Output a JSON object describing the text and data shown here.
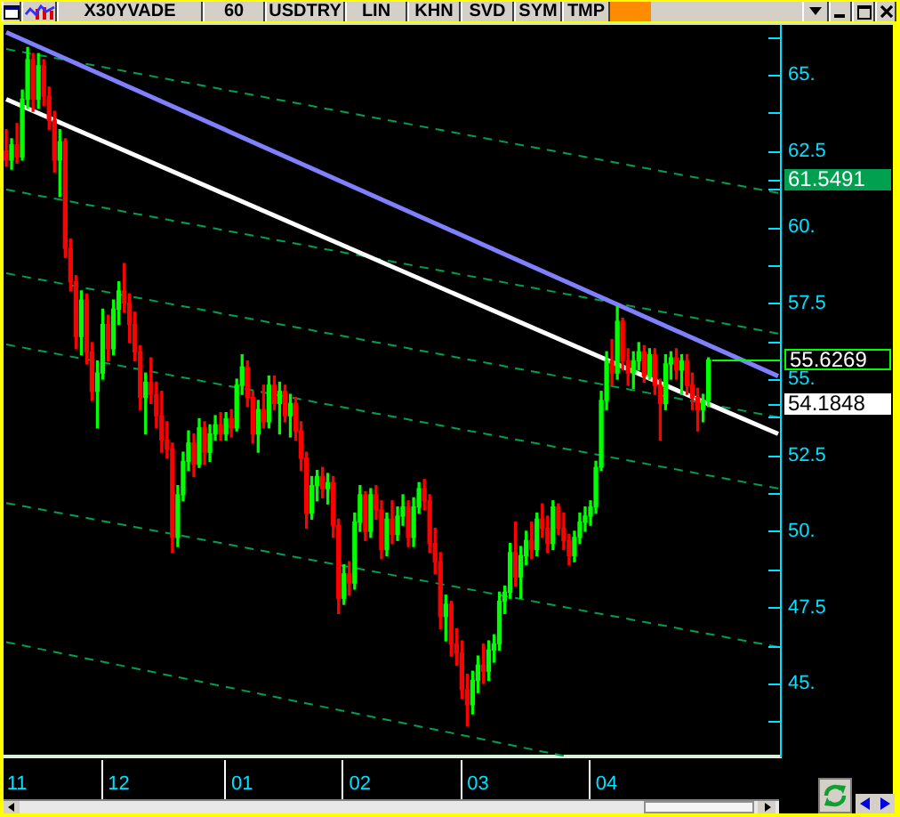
{
  "chart_data": {
    "type": "candlestick",
    "title": "X30YVADE",
    "annotations": [
      "60",
      "USDTRY",
      "LIN",
      "KHN",
      "SVD",
      "SYM",
      "TMP"
    ],
    "categories": [
      null,
      null,
      "11",
      null,
      null,
      null,
      null,
      null,
      null,
      null,
      null,
      null,
      null,
      null,
      null,
      null,
      null,
      null,
      null,
      null,
      null,
      "12",
      null,
      null,
      null,
      null,
      null,
      null,
      null,
      null,
      null,
      null,
      null,
      null,
      null,
      null,
      null,
      null,
      null,
      null,
      null,
      null,
      null,
      null,
      "01",
      null,
      null,
      null,
      null,
      null,
      null,
      null,
      null,
      null,
      null,
      null,
      null,
      null,
      null,
      null,
      null,
      null,
      null,
      null,
      null,
      null,
      "02",
      null,
      null,
      null,
      null,
      null,
      null,
      null,
      null,
      null,
      null,
      null,
      null,
      null,
      null,
      null,
      null,
      null,
      null,
      null,
      null,
      null,
      "03",
      null,
      null,
      null,
      null,
      null,
      null,
      null,
      null,
      null,
      null,
      null,
      null,
      null,
      null,
      null,
      null,
      null,
      null,
      null,
      null,
      null,
      null,
      null,
      "04",
      null,
      null,
      null,
      null,
      null,
      null,
      null,
      null,
      null,
      null,
      null,
      null,
      null,
      null,
      null,
      null,
      null,
      null,
      null,
      null,
      null,
      null,
      null,
      null,
      null,
      null,
      null,
      null,
      null,
      null,
      null,
      null
    ],
    "ohlc": [
      [
        62.5,
        63.2,
        62.0,
        62.2
      ],
      [
        62.2,
        62.9,
        61.9,
        62.7
      ],
      [
        62.7,
        63.4,
        62.1,
        62.3
      ],
      [
        62.3,
        64.5,
        62.2,
        64.2
      ],
      [
        64.2,
        65.9,
        63.9,
        65.5
      ],
      [
        65.5,
        65.7,
        63.8,
        64.2
      ],
      [
        64.2,
        65.7,
        63.9,
        65.3
      ],
      [
        65.3,
        65.5,
        64.0,
        64.3
      ],
      [
        64.3,
        64.6,
        63.2,
        63.5
      ],
      [
        63.5,
        63.8,
        61.8,
        62.2
      ],
      [
        62.2,
        63.2,
        61.0,
        62.8
      ],
      [
        62.8,
        62.9,
        59.0,
        59.3
      ],
      [
        59.3,
        59.6,
        57.9,
        58.2
      ],
      [
        58.2,
        58.4,
        56.0,
        56.4
      ],
      [
        56.4,
        57.9,
        55.8,
        57.6
      ],
      [
        57.6,
        57.8,
        55.5,
        55.9
      ],
      [
        55.9,
        56.2,
        54.3,
        54.6
      ],
      [
        54.6,
        55.6,
        53.4,
        55.2
      ],
      [
        55.2,
        57.3,
        55.0,
        56.8
      ],
      [
        56.8,
        57.1,
        55.6,
        56.0
      ],
      [
        56.0,
        57.6,
        55.8,
        57.3
      ],
      [
        57.3,
        58.2,
        56.8,
        57.9
      ],
      [
        57.9,
        58.8,
        57.2,
        57.5
      ],
      [
        57.5,
        57.8,
        56.2,
        56.8
      ],
      [
        56.8,
        57.2,
        55.6,
        55.9
      ],
      [
        55.9,
        56.1,
        54.0,
        54.4
      ],
      [
        54.4,
        55.2,
        53.2,
        54.9
      ],
      [
        54.9,
        55.7,
        54.2,
        54.5
      ],
      [
        54.5,
        54.9,
        53.4,
        53.8
      ],
      [
        53.8,
        54.6,
        52.6,
        53.0
      ],
      [
        53.0,
        53.6,
        52.4,
        52.7
      ],
      [
        52.7,
        52.9,
        49.3,
        49.8
      ],
      [
        49.8,
        51.5,
        49.5,
        51.2
      ],
      [
        51.2,
        52.6,
        51.0,
        52.3
      ],
      [
        52.3,
        53.3,
        52.0,
        52.9
      ],
      [
        52.9,
        53.2,
        51.8,
        52.2
      ],
      [
        52.2,
        53.7,
        52.1,
        53.4
      ],
      [
        53.4,
        53.6,
        52.2,
        52.6
      ],
      [
        52.6,
        53.5,
        52.3,
        53.2
      ],
      [
        53.2,
        53.8,
        53.0,
        53.5
      ],
      [
        53.5,
        53.9,
        53.0,
        53.2
      ],
      [
        53.2,
        53.9,
        53.0,
        53.7
      ],
      [
        53.7,
        54.0,
        53.1,
        53.4
      ],
      [
        53.4,
        55.0,
        53.3,
        54.8
      ],
      [
        54.8,
        55.8,
        54.5,
        55.4
      ],
      [
        55.4,
        55.6,
        54.1,
        54.4
      ],
      [
        54.4,
        54.6,
        52.9,
        53.2
      ],
      [
        53.2,
        54.3,
        52.6,
        54.0
      ],
      [
        54.0,
        54.8,
        53.4,
        53.6
      ],
      [
        53.6,
        55.1,
        53.4,
        54.8
      ],
      [
        54.8,
        55.1,
        54.0,
        54.2
      ],
      [
        54.2,
        54.9,
        53.2,
        54.6
      ],
      [
        54.6,
        54.8,
        53.6,
        53.8
      ],
      [
        53.8,
        54.5,
        53.1,
        54.2
      ],
      [
        54.2,
        54.4,
        53.0,
        53.3
      ],
      [
        53.3,
        53.6,
        52.0,
        52.4
      ],
      [
        52.4,
        52.6,
        50.1,
        50.6
      ],
      [
        50.6,
        51.8,
        50.4,
        51.5
      ],
      [
        51.5,
        52.0,
        51.0,
        51.8
      ],
      [
        51.8,
        52.1,
        51.1,
        51.4
      ],
      [
        51.4,
        51.9,
        50.9,
        51.6
      ],
      [
        51.6,
        51.8,
        49.8,
        50.2
      ],
      [
        50.2,
        50.4,
        47.3,
        47.8
      ],
      [
        47.8,
        48.9,
        47.6,
        48.6
      ],
      [
        48.6,
        49.0,
        47.9,
        48.3
      ],
      [
        48.3,
        50.6,
        48.1,
        50.3
      ],
      [
        50.3,
        51.5,
        50.0,
        51.2
      ],
      [
        51.2,
        51.3,
        49.7,
        50.0
      ],
      [
        50.0,
        51.4,
        49.8,
        51.2
      ],
      [
        51.2,
        51.5,
        50.4,
        50.7
      ],
      [
        50.7,
        51.0,
        49.1,
        49.4
      ],
      [
        49.4,
        50.6,
        49.2,
        50.4
      ],
      [
        50.4,
        51.0,
        49.6,
        49.9
      ],
      [
        49.9,
        50.8,
        49.7,
        50.5
      ],
      [
        50.5,
        51.2,
        50.2,
        50.8
      ],
      [
        50.8,
        51.0,
        49.5,
        49.8
      ],
      [
        49.8,
        51.1,
        49.5,
        50.8
      ],
      [
        50.8,
        51.6,
        50.6,
        51.4
      ],
      [
        51.4,
        51.7,
        50.7,
        51.0
      ],
      [
        51.0,
        51.2,
        49.3,
        49.6
      ],
      [
        49.6,
        50.1,
        48.6,
        49.0
      ],
      [
        49.0,
        49.3,
        46.8,
        47.2
      ],
      [
        47.2,
        47.9,
        46.4,
        47.6
      ],
      [
        47.6,
        47.7,
        45.9,
        46.3
      ],
      [
        46.3,
        46.8,
        45.6,
        46.0
      ],
      [
        46.0,
        46.4,
        44.5,
        44.8
      ],
      [
        44.8,
        45.3,
        43.6,
        44.3
      ],
      [
        44.3,
        45.4,
        44.0,
        45.1
      ],
      [
        45.1,
        45.9,
        44.7,
        45.6
      ],
      [
        45.6,
        46.3,
        45.0,
        45.4
      ],
      [
        45.4,
        46.4,
        45.1,
        46.1
      ],
      [
        46.1,
        46.6,
        45.7,
        46.3
      ],
      [
        46.3,
        48.0,
        46.1,
        47.7
      ],
      [
        47.7,
        48.2,
        47.3,
        48.0
      ],
      [
        48.0,
        49.6,
        47.8,
        49.3
      ],
      [
        49.3,
        50.3,
        48.2,
        48.5
      ],
      [
        48.5,
        49.5,
        47.8,
        49.2
      ],
      [
        49.2,
        50.0,
        48.9,
        49.7
      ],
      [
        49.7,
        50.3,
        49.1,
        49.4
      ],
      [
        49.4,
        50.6,
        49.2,
        50.4
      ],
      [
        50.4,
        50.9,
        49.8,
        50.1
      ],
      [
        50.1,
        50.5,
        49.3,
        49.6
      ],
      [
        49.6,
        51.0,
        49.4,
        50.8
      ],
      [
        50.8,
        50.9,
        49.9,
        50.1
      ],
      [
        50.1,
        50.6,
        49.4,
        49.7
      ],
      [
        49.7,
        49.9,
        48.9,
        49.2
      ],
      [
        49.2,
        50.0,
        49.0,
        49.8
      ],
      [
        49.8,
        50.6,
        49.6,
        50.3
      ],
      [
        50.3,
        50.8,
        50.0,
        50.5
      ],
      [
        50.5,
        51.0,
        50.2,
        50.8
      ],
      [
        50.8,
        52.3,
        50.6,
        52.1
      ],
      [
        52.1,
        54.6,
        52.0,
        54.3
      ],
      [
        54.3,
        55.9,
        54.0,
        55.6
      ],
      [
        55.6,
        56.3,
        54.8,
        55.2
      ],
      [
        55.2,
        57.4,
        55.0,
        56.9
      ],
      [
        56.9,
        57.0,
        55.3,
        55.6
      ],
      [
        55.6,
        56.0,
        54.8,
        55.2
      ],
      [
        55.2,
        55.9,
        54.7,
        55.6
      ],
      [
        55.6,
        56.2,
        55.3,
        55.9
      ],
      [
        55.9,
        56.1,
        54.9,
        55.1
      ],
      [
        55.1,
        56.0,
        55.0,
        55.8
      ],
      [
        55.8,
        56.0,
        54.5,
        54.8
      ],
      [
        54.8,
        55.0,
        53.0,
        54.2
      ],
      [
        54.2,
        55.8,
        54.0,
        55.5
      ],
      [
        55.5,
        55.9,
        55.0,
        55.7
      ],
      [
        55.7,
        56.0,
        55.0,
        55.3
      ],
      [
        55.3,
        55.8,
        54.5,
        55.6
      ],
      [
        55.6,
        55.8,
        54.5,
        54.8
      ],
      [
        54.8,
        55.2,
        54.0,
        54.4
      ],
      [
        54.4,
        54.7,
        53.3,
        54.0
      ],
      [
        54.0,
        54.5,
        53.6,
        54.3
      ],
      [
        54.3,
        55.7,
        54.1,
        55.6269
      ],
      null,
      null,
      null,
      null,
      null,
      null,
      null,
      null,
      null,
      null,
      null,
      null,
      null
    ],
    "colors": [
      "#ff0000",
      "#00ff00",
      "#ff0000",
      "#00ff00",
      "#00ff00",
      "#ff0000",
      "#00ff00",
      "#ff0000",
      "#ff0000",
      "#ff0000",
      "#00ff00",
      "#ff0000",
      "#ff0000",
      "#ff0000",
      "#00ff00",
      "#ff0000",
      "#ff0000",
      "#00ff00",
      "#00ff00",
      "#ff0000",
      "#00ff00",
      "#00ff00",
      "#ff0000",
      "#ff0000",
      "#ff0000",
      "#ff0000",
      "#00ff00",
      "#ff0000",
      "#ff0000",
      "#ff0000",
      "#ff0000",
      "#ff0000",
      "#00ff00",
      "#00ff00",
      "#00ff00",
      "#ff0000",
      "#00ff00",
      "#ff0000",
      "#00ff00",
      "#00ff00",
      "#ff0000",
      "#00ff00",
      "#ff0000",
      "#00ff00",
      "#00ff00",
      "#ff0000",
      "#ff0000",
      "#00ff00",
      "#ff0000",
      "#00ff00",
      "#ff0000",
      "#00ff00",
      "#ff0000",
      "#00ff00",
      "#ff0000",
      "#ff0000",
      "#ff0000",
      "#00ff00",
      "#00ff00",
      "#ff0000",
      "#00ff00",
      "#ff0000",
      "#ff0000",
      "#00ff00",
      "#ff0000",
      "#00ff00",
      "#00ff00",
      "#ff0000",
      "#00ff00",
      "#ff0000",
      "#ff0000",
      "#00ff00",
      "#ff0000",
      "#00ff00",
      "#00ff00",
      "#ff0000",
      "#00ff00",
      "#00ff00",
      "#ff0000",
      "#ff0000",
      "#ff0000",
      "#ff0000",
      "#00ff00",
      "#ff0000",
      "#ff0000",
      "#ff0000",
      "#ff0000",
      "#00ff00",
      "#00ff00",
      "#ff0000",
      "#00ff00",
      "#00ff00",
      "#00ff00",
      "#00ff00",
      "#00ff00",
      "#ff0000",
      "#00ff00",
      "#00ff00",
      "#ff0000",
      "#00ff00",
      "#ff0000",
      "#ff0000",
      "#00ff00",
      "#ff0000",
      "#ff0000",
      "#ff0000",
      "#00ff00",
      "#00ff00",
      "#00ff00",
      "#00ff00",
      "#00ff00",
      "#00ff00",
      "#00ff00",
      "#ff0000",
      "#00ff00",
      "#ff0000",
      "#ff0000",
      "#00ff00",
      "#00ff00",
      "#ff0000",
      "#00ff00",
      "#ff0000",
      "#ff0000",
      "#00ff00",
      "#00ff00",
      "#ff0000",
      "#00ff00",
      "#ff0000",
      "#ff0000",
      "#ff0000",
      "#00ff00",
      "#00ff00",
      null,
      null,
      null,
      null,
      null,
      null,
      null,
      null,
      null,
      null,
      null,
      null,
      null
    ],
    "value_labels": [
      null,
      null,
      null,
      null,
      null,
      null,
      null,
      null,
      null,
      null,
      null,
      null,
      null,
      null,
      null,
      null,
      null,
      null,
      null,
      null,
      null,
      null,
      null,
      null,
      null,
      null,
      null,
      null,
      null,
      null,
      null,
      null,
      null,
      null,
      null,
      null,
      null,
      null,
      null,
      null,
      null,
      null,
      null,
      null,
      null,
      null,
      null,
      null,
      null,
      null,
      null,
      null,
      null,
      null,
      null,
      null,
      null,
      null,
      null,
      null,
      null,
      null,
      null,
      null,
      null,
      null,
      null,
      null,
      null,
      null,
      null,
      null,
      null,
      null,
      null,
      null,
      null,
      null,
      null,
      null,
      null,
      null,
      null,
      null,
      null,
      null,
      null,
      null,
      null,
      null,
      null,
      null,
      null,
      null,
      null,
      null,
      null,
      null,
      null,
      null,
      null,
      null,
      null,
      null,
      null,
      null,
      null,
      null,
      null,
      null,
      null,
      null,
      null,
      null,
      null,
      null,
      null,
      null,
      null,
      null,
      null,
      null,
      null,
      null,
      null,
      null,
      null,
      null,
      null,
      null,
      null,
      "55.6269",
      null,
      null,
      null,
      null,
      null,
      null,
      null,
      null,
      null,
      null,
      null,
      null,
      null
    ],
    "series": [
      {
        "type": "line",
        "color": "#8080ff",
        "line_style": "solid",
        "values": [
          66.4,
          null,
          null,
          null,
          null,
          null,
          null,
          null,
          null,
          null,
          null,
          null,
          null,
          null,
          null,
          null,
          null,
          null,
          null,
          null,
          null,
          null,
          null,
          null,
          null,
          null,
          null,
          null,
          null,
          null,
          null,
          null,
          null,
          null,
          null,
          null,
          null,
          null,
          null,
          null,
          null,
          null,
          null,
          null,
          null,
          null,
          null,
          null,
          null,
          null,
          null,
          null,
          null,
          null,
          null,
          null,
          null,
          null,
          null,
          null,
          null,
          null,
          null,
          null,
          null,
          null,
          null,
          null,
          null,
          null,
          null,
          null,
          null,
          null,
          null,
          null,
          null,
          null,
          null,
          null,
          null,
          null,
          null,
          null,
          null,
          null,
          null,
          null,
          null,
          null,
          null,
          null,
          null,
          null,
          null,
          null,
          null,
          null,
          null,
          null,
          null,
          null,
          null,
          null,
          null,
          null,
          null,
          null,
          null,
          null,
          null,
          null,
          null,
          null,
          null,
          null,
          null,
          null,
          null,
          null,
          null,
          null,
          null,
          null,
          null,
          null,
          null,
          null,
          null,
          null,
          null,
          null,
          null,
          null,
          null,
          null,
          null,
          null,
          null,
          null,
          null,
          null,
          null,
          null,
          55.1
        ]
      },
      {
        "type": "line",
        "color": "#ffffff",
        "line_style": "solid",
        "values": [
          64.2,
          null,
          null,
          null,
          null,
          null,
          null,
          null,
          null,
          null,
          null,
          null,
          null,
          null,
          null,
          null,
          null,
          null,
          null,
          null,
          null,
          null,
          null,
          null,
          null,
          null,
          null,
          null,
          null,
          null,
          null,
          null,
          null,
          null,
          null,
          null,
          null,
          null,
          null,
          null,
          null,
          null,
          null,
          null,
          null,
          null,
          null,
          null,
          null,
          null,
          null,
          null,
          null,
          null,
          null,
          null,
          null,
          null,
          null,
          null,
          null,
          null,
          null,
          null,
          null,
          null,
          null,
          null,
          null,
          null,
          null,
          null,
          null,
          null,
          null,
          null,
          null,
          null,
          null,
          null,
          null,
          null,
          null,
          null,
          null,
          null,
          null,
          null,
          null,
          null,
          null,
          null,
          null,
          null,
          null,
          null,
          null,
          null,
          null,
          null,
          null,
          null,
          null,
          null,
          null,
          null,
          null,
          null,
          null,
          null,
          null,
          null,
          null,
          null,
          null,
          null,
          null,
          null,
          null,
          null,
          null,
          null,
          null,
          null,
          null,
          null,
          null,
          null,
          null,
          null,
          null,
          54.1848,
          null,
          null,
          null,
          null,
          null,
          null,
          null,
          null,
          null,
          null,
          null,
          null,
          53.2
        ]
      },
      {
        "type": "line",
        "color": "#00a050",
        "line_style": "dashed",
        "values": [
          65.85,
          null,
          null,
          null,
          null,
          null,
          null,
          null,
          null,
          null,
          null,
          null,
          null,
          null,
          null,
          null,
          null,
          null,
          null,
          null,
          null,
          null,
          null,
          null,
          null,
          null,
          null,
          null,
          null,
          null,
          null,
          null,
          null,
          null,
          null,
          null,
          null,
          null,
          null,
          null,
          null,
          null,
          null,
          null,
          null,
          null,
          null,
          null,
          null,
          null,
          null,
          null,
          null,
          null,
          null,
          null,
          null,
          null,
          null,
          null,
          null,
          null,
          null,
          null,
          null,
          null,
          null,
          null,
          null,
          null,
          null,
          null,
          null,
          null,
          null,
          null,
          null,
          null,
          null,
          null,
          null,
          null,
          null,
          null,
          null,
          null,
          null,
          null,
          null,
          null,
          null,
          null,
          null,
          null,
          null,
          null,
          null,
          null,
          null,
          null,
          null,
          null,
          null,
          null,
          null,
          null,
          null,
          null,
          null,
          null,
          null,
          null,
          null,
          null,
          null,
          null,
          null,
          null,
          null,
          null,
          null,
          null,
          null,
          null,
          null,
          null,
          null,
          null,
          null,
          null,
          null,
          61.5491,
          null,
          null,
          null,
          null,
          null,
          null,
          null,
          null,
          null,
          null,
          null,
          null,
          61.12
        ]
      },
      {
        "type": "line",
        "color": "#00a050",
        "line_style": "dashed",
        "values": [
          61.23,
          null,
          null,
          null,
          null,
          null,
          null,
          null,
          null,
          null,
          null,
          null,
          null,
          null,
          null,
          null,
          null,
          null,
          null,
          null,
          null,
          null,
          null,
          null,
          null,
          null,
          null,
          null,
          null,
          null,
          null,
          null,
          null,
          null,
          null,
          null,
          null,
          null,
          null,
          null,
          null,
          null,
          null,
          null,
          null,
          null,
          null,
          null,
          null,
          null,
          null,
          null,
          null,
          null,
          null,
          null,
          null,
          null,
          null,
          null,
          null,
          null,
          null,
          null,
          null,
          null,
          null,
          null,
          null,
          null,
          null,
          null,
          null,
          null,
          null,
          null,
          null,
          null,
          null,
          null,
          null,
          null,
          null,
          null,
          null,
          null,
          null,
          null,
          null,
          null,
          null,
          null,
          null,
          null,
          null,
          null,
          null,
          null,
          null,
          null,
          null,
          null,
          null,
          null,
          null,
          null,
          null,
          null,
          null,
          null,
          null,
          null,
          null,
          null,
          null,
          null,
          null,
          null,
          null,
          null,
          null,
          null,
          null,
          null,
          null,
          null,
          null,
          null,
          null,
          null,
          null,
          null,
          null,
          null,
          null,
          null,
          null,
          null,
          null,
          null,
          null,
          null,
          null,
          null,
          56.5
        ]
      },
      {
        "type": "line",
        "color": "#00a050",
        "line_style": "dashed",
        "values": [
          58.48,
          null,
          null,
          null,
          null,
          null,
          null,
          null,
          null,
          null,
          null,
          null,
          null,
          null,
          null,
          null,
          null,
          null,
          null,
          null,
          null,
          null,
          null,
          null,
          null,
          null,
          null,
          null,
          null,
          null,
          null,
          null,
          null,
          null,
          null,
          null,
          null,
          null,
          null,
          null,
          null,
          null,
          null,
          null,
          null,
          null,
          null,
          null,
          null,
          null,
          null,
          null,
          null,
          null,
          null,
          null,
          null,
          null,
          null,
          null,
          null,
          null,
          null,
          null,
          null,
          null,
          null,
          null,
          null,
          null,
          null,
          null,
          null,
          null,
          null,
          null,
          null,
          null,
          null,
          null,
          null,
          null,
          null,
          null,
          null,
          null,
          null,
          null,
          null,
          null,
          null,
          null,
          null,
          null,
          null,
          null,
          null,
          null,
          null,
          null,
          null,
          null,
          null,
          null,
          null,
          null,
          null,
          null,
          null,
          null,
          null,
          null,
          null,
          null,
          null,
          null,
          null,
          null,
          null,
          null,
          null,
          null,
          null,
          null,
          null,
          null,
          null,
          null,
          null,
          null,
          null,
          null,
          null,
          null,
          null,
          null,
          null,
          null,
          null,
          null,
          null,
          null,
          null,
          null,
          53.75
        ]
      },
      {
        "type": "line",
        "color": "#00a050",
        "line_style": "dashed",
        "values": [
          56.14,
          null,
          null,
          null,
          null,
          null,
          null,
          null,
          null,
          null,
          null,
          null,
          null,
          null,
          null,
          null,
          null,
          null,
          null,
          null,
          null,
          null,
          null,
          null,
          null,
          null,
          null,
          null,
          null,
          null,
          null,
          null,
          null,
          null,
          null,
          null,
          null,
          null,
          null,
          null,
          null,
          null,
          null,
          null,
          null,
          null,
          null,
          null,
          null,
          null,
          null,
          null,
          null,
          null,
          null,
          null,
          null,
          null,
          null,
          null,
          null,
          null,
          null,
          null,
          null,
          null,
          null,
          null,
          null,
          null,
          null,
          null,
          null,
          null,
          null,
          null,
          null,
          null,
          null,
          null,
          null,
          null,
          null,
          null,
          null,
          null,
          null,
          null,
          null,
          null,
          null,
          null,
          null,
          null,
          null,
          null,
          null,
          null,
          null,
          null,
          null,
          null,
          null,
          null,
          null,
          null,
          null,
          null,
          null,
          null,
          null,
          null,
          null,
          null,
          null,
          null,
          null,
          null,
          null,
          null,
          null,
          null,
          null,
          null,
          null,
          null,
          null,
          null,
          null,
          null,
          null,
          null,
          null,
          null,
          null,
          null,
          null,
          null,
          null,
          null,
          null,
          null,
          null,
          null,
          51.41
        ]
      },
      {
        "type": "line",
        "color": "#00a050",
        "line_style": "dashed",
        "values": [
          50.93,
          null,
          null,
          null,
          null,
          null,
          null,
          null,
          null,
          null,
          null,
          null,
          null,
          null,
          null,
          null,
          null,
          null,
          null,
          null,
          null,
          null,
          null,
          null,
          null,
          null,
          null,
          null,
          null,
          null,
          null,
          null,
          null,
          null,
          null,
          null,
          null,
          null,
          null,
          null,
          null,
          null,
          null,
          null,
          null,
          null,
          null,
          null,
          null,
          null,
          null,
          null,
          null,
          null,
          null,
          null,
          null,
          null,
          null,
          null,
          null,
          null,
          null,
          null,
          null,
          null,
          null,
          null,
          null,
          null,
          null,
          null,
          null,
          null,
          null,
          null,
          null,
          null,
          null,
          null,
          null,
          null,
          null,
          null,
          null,
          null,
          null,
          null,
          null,
          null,
          null,
          null,
          null,
          null,
          null,
          null,
          null,
          null,
          null,
          null,
          null,
          null,
          null,
          null,
          null,
          null,
          null,
          null,
          null,
          null,
          null,
          null,
          null,
          null,
          null,
          null,
          null,
          null,
          null,
          null,
          null,
          null,
          null,
          null,
          null,
          null,
          null,
          null,
          null,
          null,
          null,
          null,
          null,
          null,
          null,
          null,
          null,
          null,
          null,
          null,
          null,
          null,
          null,
          null,
          46.2
        ]
      },
      {
        "type": "line",
        "color": "#00a050",
        "line_style": "dashed",
        "values": [
          46.36,
          null,
          null,
          null,
          null,
          null,
          null,
          null,
          null,
          null,
          null,
          null,
          null,
          null,
          null,
          null,
          null,
          null,
          null,
          null,
          null,
          null,
          null,
          null,
          null,
          null,
          null,
          null,
          null,
          null,
          null,
          null,
          null,
          null,
          null,
          null,
          null,
          null,
          null,
          null,
          null,
          null,
          null,
          null,
          null,
          null,
          null,
          null,
          null,
          null,
          null,
          null,
          null,
          null,
          null,
          null,
          null,
          null,
          null,
          null,
          null,
          null,
          null,
          null,
          null,
          null,
          null,
          null,
          null,
          null,
          null,
          null,
          null,
          null,
          null,
          null,
          null,
          null,
          null,
          null,
          null,
          null,
          null,
          null,
          null,
          null,
          null,
          null,
          null,
          null,
          null,
          null,
          null,
          null,
          null,
          null,
          null,
          null,
          null,
          null,
          null,
          null,
          null,
          null,
          42.62,
          null,
          null,
          null,
          null,
          null,
          null,
          null,
          null,
          null,
          null,
          null,
          null,
          null,
          null,
          null,
          null,
          null,
          null,
          null,
          null,
          null,
          null,
          null,
          null,
          null,
          null,
          null,
          null,
          null,
          null,
          null,
          null,
          null,
          null,
          null,
          null,
          null,
          null,
          null,
          null
        ]
      }
    ],
    "ylim": [
      42.6,
      66.7
    ],
    "yticks": [
      {
        "value": 43.75,
        "label": null
      },
      {
        "value": 45,
        "label": "45."
      },
      {
        "value": 46.25,
        "label": null
      },
      47.5,
      {
        "value": 48.75,
        "label": null
      },
      {
        "value": 50,
        "label": "50."
      },
      {
        "value": 51.25,
        "label": null
      },
      52.5,
      {
        "value": 53.75,
        "label": null
      },
      54.1848,
      {
        "value": 55,
        "label": "55."
      },
      {
        "value": 56.25,
        "label": null
      },
      57.5,
      {
        "value": 58.75,
        "label": null
      },
      {
        "value": 60,
        "label": "60."
      },
      {
        "value": 61.25,
        "label": null
      },
      61.5491,
      62.5,
      {
        "value": 63.75,
        "label": null
      },
      {
        "value": 65,
        "label": "65."
      },
      {
        "value": 66.25,
        "label": null
      }
    ]
  }
}
